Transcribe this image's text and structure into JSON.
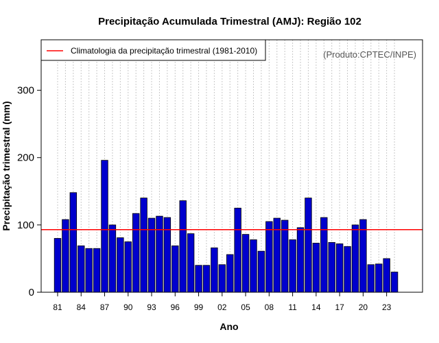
{
  "chart_data": {
    "type": "bar",
    "title": "Precipitação Acumulada Trimestral (AMJ): Região 102",
    "xlabel": "Ano",
    "ylabel": "Precipitação trimestral (mm)",
    "credit": "(Produto:CPTEC/INPE)",
    "legend": {
      "label": "Climatologia da precipitação trimestral (1981-2010)",
      "position": "top-left"
    },
    "ylim": [
      0,
      375
    ],
    "yticks": [
      0,
      100,
      200,
      300
    ],
    "xtick_labels": [
      "81",
      "84",
      "87",
      "90",
      "93",
      "96",
      "99",
      "02",
      "05",
      "08",
      "11",
      "14",
      "17",
      "20",
      "23"
    ],
    "xtick_years": [
      1981,
      1984,
      1987,
      1990,
      1993,
      1996,
      1999,
      2002,
      2005,
      2008,
      2011,
      2014,
      2017,
      2020,
      2023
    ],
    "climatology": 93,
    "categories": [
      1981,
      1982,
      1983,
      1984,
      1985,
      1986,
      1987,
      1988,
      1989,
      1990,
      1991,
      1992,
      1993,
      1994,
      1995,
      1996,
      1997,
      1998,
      1999,
      2000,
      2001,
      2002,
      2003,
      2004,
      2005,
      2006,
      2007,
      2008,
      2009,
      2010,
      2011,
      2012,
      2013,
      2014,
      2015,
      2016,
      2017,
      2018,
      2019,
      2020,
      2021,
      2022,
      2023,
      2024
    ],
    "values": [
      80,
      108,
      148,
      69,
      65,
      65,
      196,
      100,
      81,
      75,
      117,
      140,
      110,
      113,
      111,
      69,
      136,
      87,
      40,
      40,
      66,
      41,
      56,
      125,
      86,
      78,
      61,
      105,
      110,
      107,
      78,
      96,
      140,
      73,
      111,
      74,
      72,
      68,
      100,
      108,
      41,
      42,
      50,
      30
    ],
    "colors": {
      "bar": "#0000cd",
      "bar_edge": "#000000",
      "climatology": "#ff0000",
      "grid": "#c8c8c8"
    }
  }
}
